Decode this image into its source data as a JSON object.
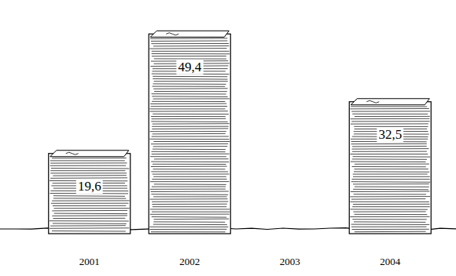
{
  "chart_data": {
    "type": "bar",
    "categories": [
      "2001",
      "2002",
      "2003",
      "2004"
    ],
    "values": [
      19.6,
      49.4,
      null,
      32.5
    ],
    "value_labels": [
      "19,6",
      "49,4",
      null,
      "32,5"
    ],
    "data_labels": true,
    "tick_labels": "x",
    "color": "#000000",
    "ylim": [
      0,
      52
    ]
  }
}
